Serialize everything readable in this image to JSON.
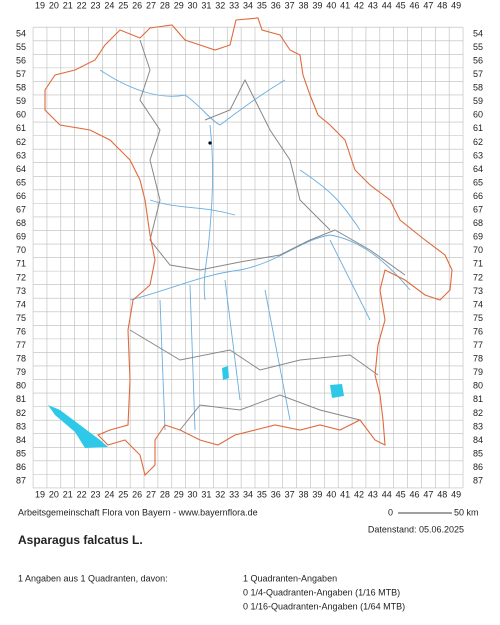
{
  "map": {
    "grid_columns": [
      19,
      20,
      21,
      22,
      23,
      24,
      25,
      26,
      27,
      28,
      29,
      30,
      31,
      32,
      33,
      34,
      35,
      36,
      37,
      38,
      39,
      40,
      41,
      42,
      43,
      44,
      45,
      46,
      47,
      48,
      49
    ],
    "grid_rows": [
      54,
      55,
      56,
      57,
      58,
      59,
      60,
      61,
      62,
      63,
      64,
      65,
      66,
      67,
      68,
      69,
      70,
      71,
      72,
      73,
      74,
      75,
      76,
      77,
      78,
      79,
      80,
      81,
      82,
      83,
      84,
      85,
      86,
      87
    ],
    "credit": "Arbeitsgemeinschaft Flora von Bayern - www.bayernflora.de",
    "scale_start": "0",
    "scale_end": "50 km",
    "data_date": "Datenstand: 05.06.2025"
  },
  "species": "Asparagus falcatus L.",
  "summary": {
    "total": "1 Angaben aus 1 Quadranten, davon:",
    "lines": [
      "1 Quadranten-Angaben",
      "0 1/4-Quadranten-Angaben (1/16 MTB)",
      "0 1/16-Quadranten-Angaben (1/64 MTB)"
    ]
  }
}
